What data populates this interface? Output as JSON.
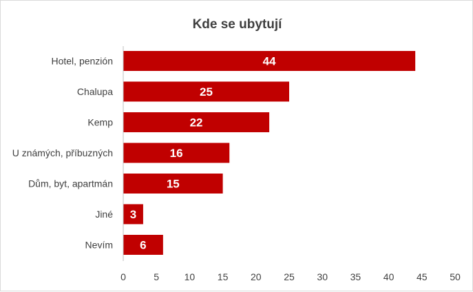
{
  "chart_data": {
    "type": "bar",
    "orientation": "horizontal",
    "title": "Kde se ubytují",
    "categories": [
      "Hotel, penzión",
      "Chalupa",
      "Kemp",
      "U známých, příbuzných",
      "Dům, byt, apartmán",
      "Jiné",
      "Nevím"
    ],
    "values": [
      44,
      25,
      22,
      16,
      15,
      3,
      6
    ],
    "xlim": [
      0,
      50
    ],
    "xticks": [
      "0",
      "5",
      "10",
      "15",
      "20",
      "25",
      "30",
      "35",
      "40",
      "45",
      "50"
    ],
    "grid": false,
    "legend": "none",
    "bar_color": "#c00000",
    "label_color": "#ffffff"
  }
}
